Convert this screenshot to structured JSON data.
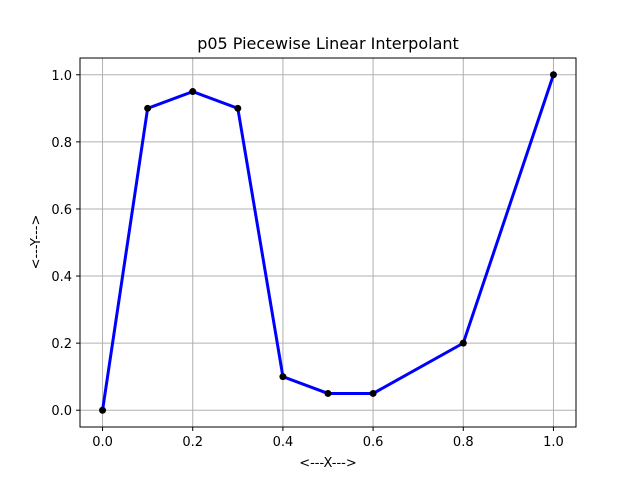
{
  "chart_data": {
    "type": "line",
    "title": "p05 Piecewise Linear Interpolant",
    "xlabel": "<---X--->",
    "ylabel": "<---Y--->",
    "xlim": [
      -0.05,
      1.05
    ],
    "ylim": [
      -0.05,
      1.05
    ],
    "xticks": [
      0.0,
      0.2,
      0.4,
      0.6,
      0.8,
      1.0
    ],
    "xtick_labels": [
      "0.0",
      "0.2",
      "0.4",
      "0.6",
      "0.8",
      "1.0"
    ],
    "yticks": [
      0.0,
      0.2,
      0.4,
      0.6,
      0.8,
      1.0
    ],
    "ytick_labels": [
      "0.0",
      "0.2",
      "0.4",
      "0.6",
      "0.8",
      "1.0"
    ],
    "grid": true,
    "series": [
      {
        "line_color": "#0000ff",
        "marker_color": "#000000",
        "x": [
          0.0,
          0.1,
          0.2,
          0.3,
          0.4,
          0.5,
          0.6,
          0.8,
          1.0
        ],
        "y": [
          0.0,
          0.9,
          0.95,
          0.9,
          0.1,
          0.05,
          0.05,
          0.2,
          1.0
        ]
      }
    ]
  }
}
